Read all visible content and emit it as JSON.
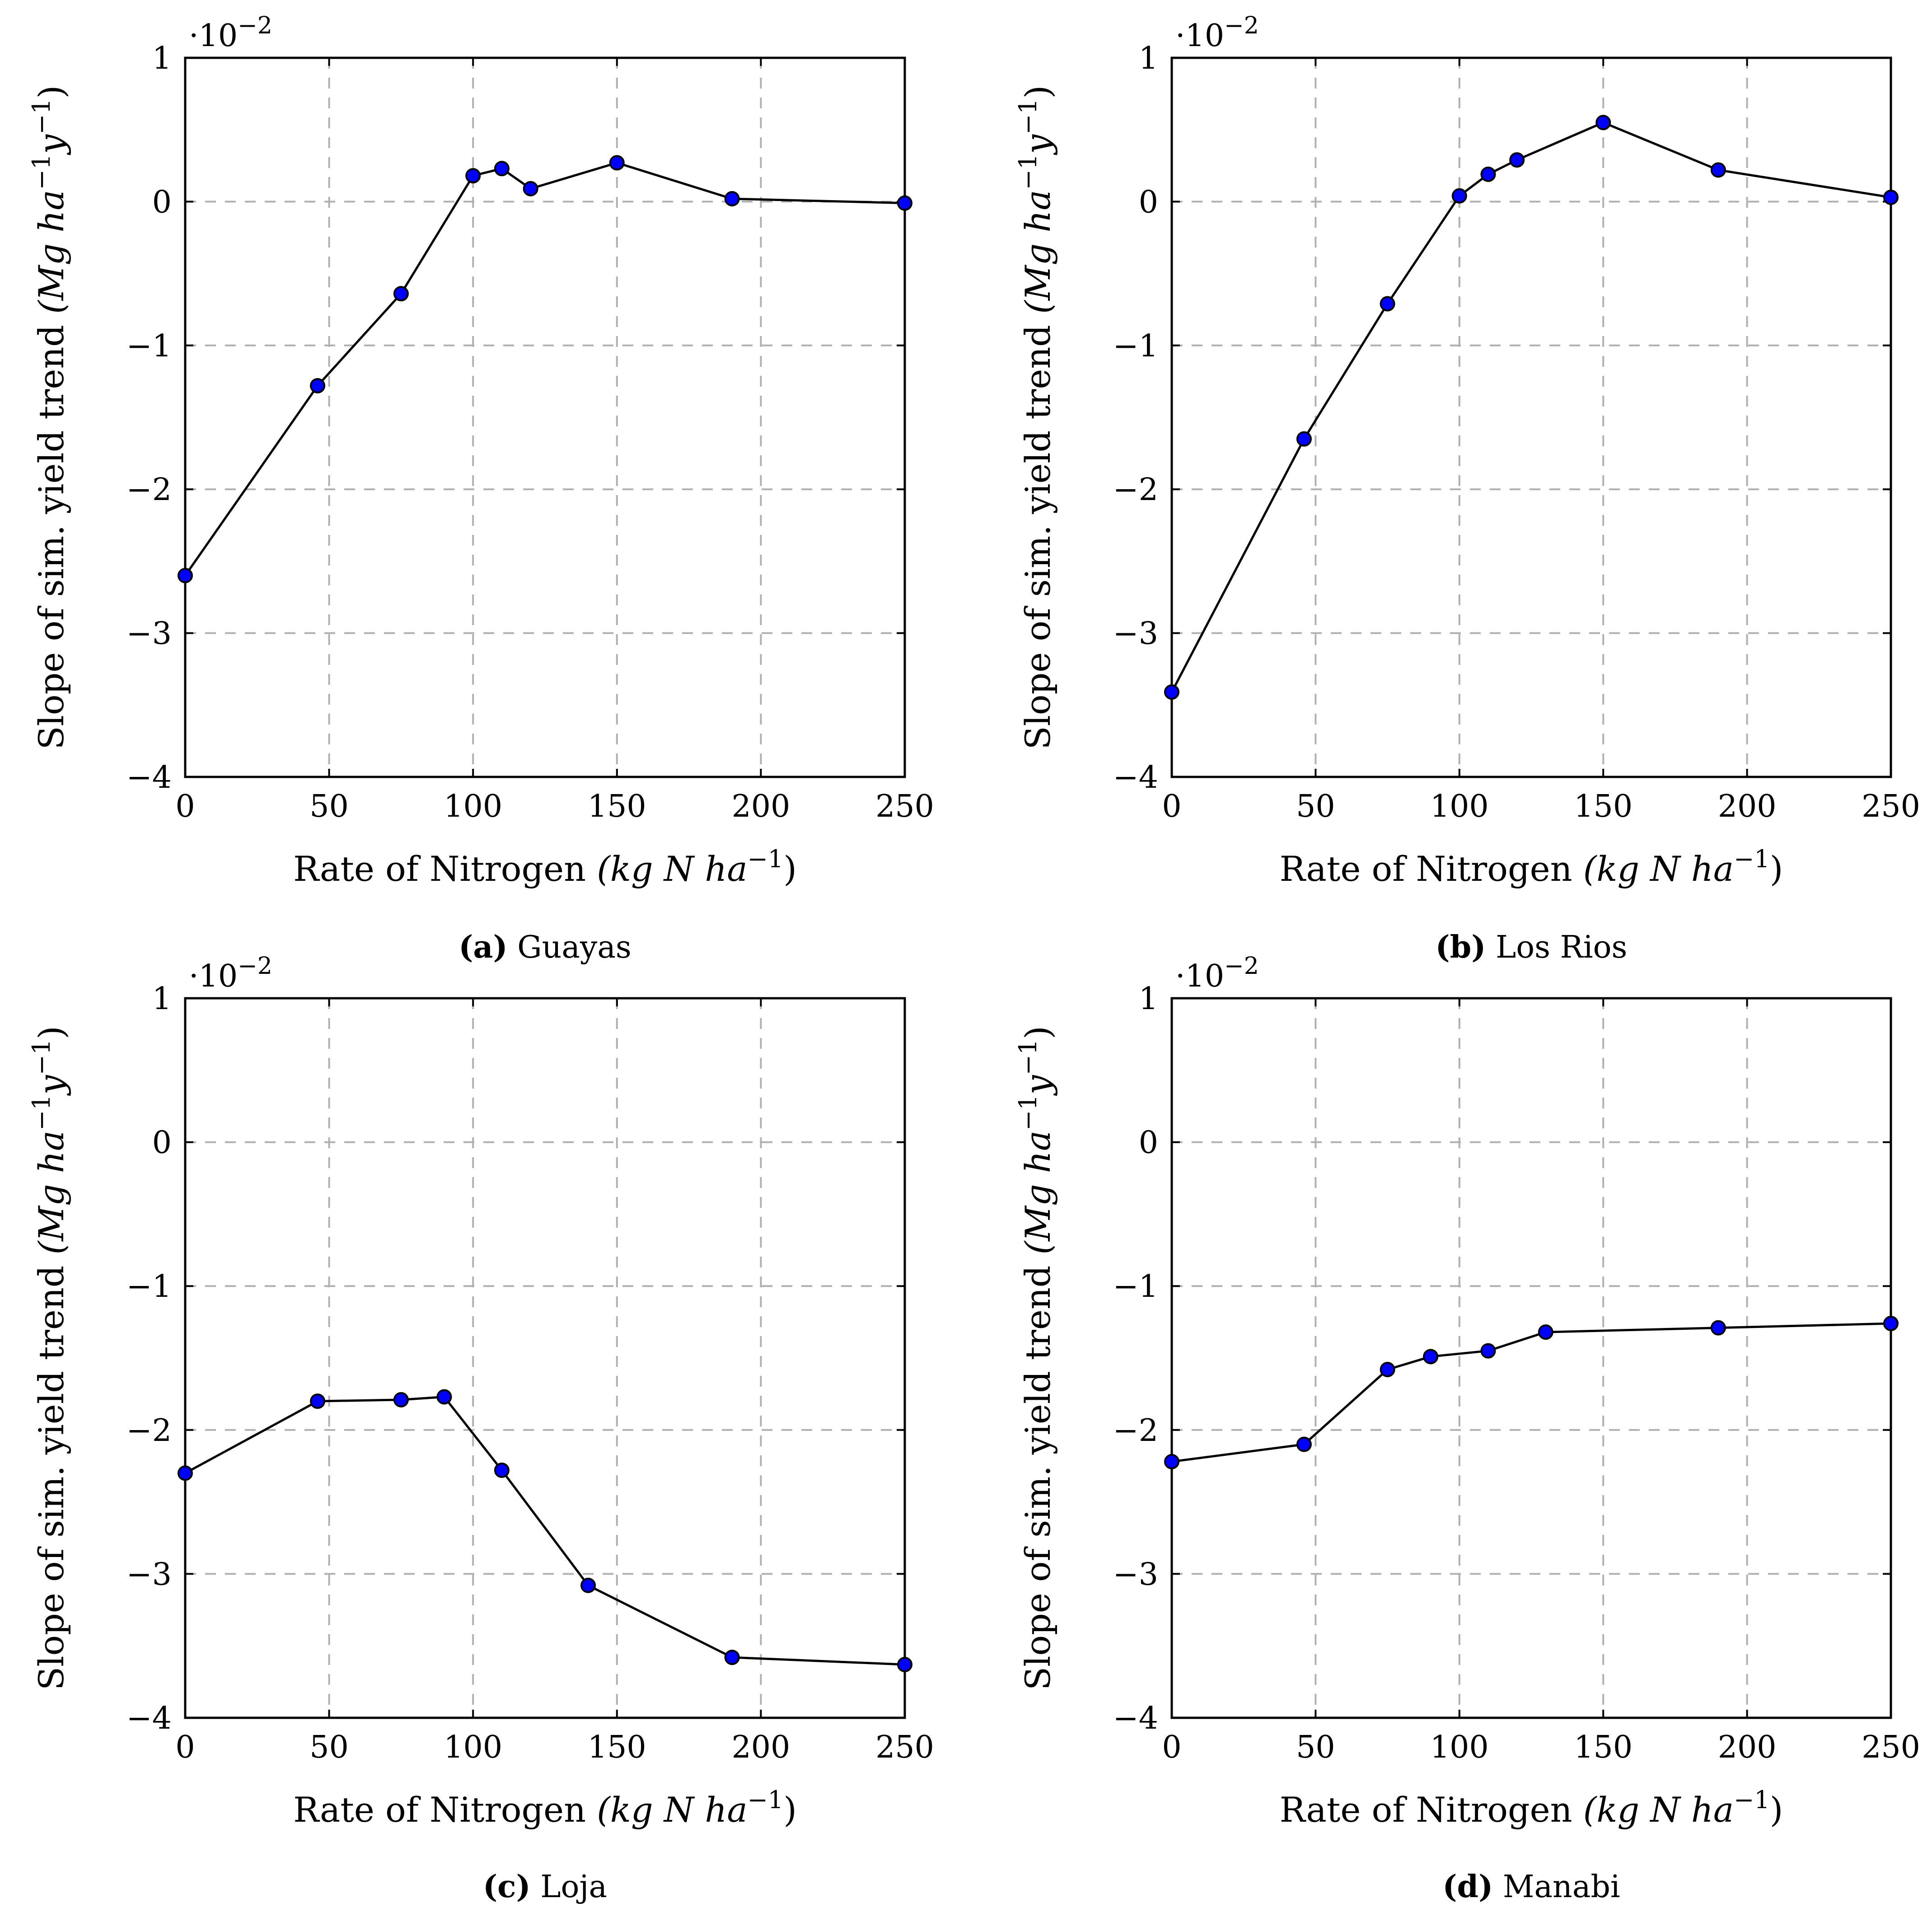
{
  "figure": {
    "line_color": "#000000",
    "marker_fill": "#0000ff",
    "grid_color": "#b0b0b0"
  },
  "chart_data": [
    {
      "id": "a",
      "type": "line",
      "caption_letter": "(a)",
      "caption_name": "Guayas",
      "x": [
        0,
        46,
        75,
        100,
        110,
        120,
        150,
        190,
        250
      ],
      "y": [
        -2.6,
        -1.28,
        -0.64,
        0.18,
        0.23,
        0.09,
        0.27,
        0.02,
        -0.01
      ],
      "xlim": [
        0,
        250
      ],
      "ylim": [
        -4,
        1
      ],
      "xticks": [
        0,
        50,
        100,
        150,
        200,
        250
      ],
      "yticks": [
        -4,
        -3,
        -2,
        -1,
        0,
        1
      ],
      "ytick_labels": [
        "−4",
        "−3",
        "−2",
        "−1",
        "0",
        "1"
      ],
      "y_scale_label": "·10",
      "y_scale_exp": "−2",
      "xlabel_text": "Rate of Nitrogen ",
      "xlabel_math": "(kg N ha",
      "xlabel_exp": "−1",
      "xlabel_close": ")",
      "ylabel_text": "Slope of sim. yield trend ",
      "ylabel_math1": "(Mg ha",
      "ylabel_exp1": "−1",
      "ylabel_math2": "y",
      "ylabel_exp2": "−1",
      "ylabel_close": ")",
      "grid": true
    },
    {
      "id": "b",
      "type": "line",
      "caption_letter": "(b)",
      "caption_name": "Los Rios",
      "x": [
        0,
        46,
        75,
        100,
        110,
        120,
        150,
        190,
        250
      ],
      "y": [
        -3.41,
        -1.65,
        -0.71,
        0.04,
        0.19,
        0.29,
        0.55,
        0.22,
        0.03
      ],
      "xlim": [
        0,
        250
      ],
      "ylim": [
        -4,
        1
      ],
      "xticks": [
        0,
        50,
        100,
        150,
        200,
        250
      ],
      "yticks": [
        -4,
        -3,
        -2,
        -1,
        0,
        1
      ],
      "ytick_labels": [
        "−4",
        "−3",
        "−2",
        "−1",
        "0",
        "1"
      ],
      "y_scale_label": "·10",
      "y_scale_exp": "−2",
      "xlabel_text": "Rate of Nitrogen ",
      "xlabel_math": "(kg N ha",
      "xlabel_exp": "−1",
      "xlabel_close": ")",
      "ylabel_text": "Slope of sim. yield trend ",
      "ylabel_math1": "(Mg ha",
      "ylabel_exp1": "−1",
      "ylabel_math2": "y",
      "ylabel_exp2": "−1",
      "ylabel_close": ")",
      "grid": true
    },
    {
      "id": "c",
      "type": "line",
      "caption_letter": "(c)",
      "caption_name": "Loja",
      "x": [
        0,
        46,
        75,
        90,
        110,
        140,
        190,
        250
      ],
      "y": [
        -2.3,
        -1.8,
        -1.79,
        -1.77,
        -2.28,
        -3.08,
        -3.58,
        -3.63
      ],
      "xlim": [
        0,
        250
      ],
      "ylim": [
        -4,
        1
      ],
      "xticks": [
        0,
        50,
        100,
        150,
        200,
        250
      ],
      "yticks": [
        -4,
        -3,
        -2,
        -1,
        0,
        1
      ],
      "ytick_labels": [
        "−4",
        "−3",
        "−2",
        "−1",
        "0",
        "1"
      ],
      "y_scale_label": "·10",
      "y_scale_exp": "−2",
      "xlabel_text": "Rate of Nitrogen ",
      "xlabel_math": "(kg N ha",
      "xlabel_exp": "−1",
      "xlabel_close": ")",
      "ylabel_text": "Slope of sim. yield trend ",
      "ylabel_math1": "(Mg ha",
      "ylabel_exp1": "−1",
      "ylabel_math2": "y",
      "ylabel_exp2": "−1",
      "ylabel_close": ")",
      "grid": true
    },
    {
      "id": "d",
      "type": "line",
      "caption_letter": "(d)",
      "caption_name": "Manabi",
      "x": [
        0,
        46,
        75,
        90,
        110,
        130,
        190,
        250
      ],
      "y": [
        -2.22,
        -2.1,
        -1.58,
        -1.49,
        -1.45,
        -1.32,
        -1.29,
        -1.26
      ],
      "xlim": [
        0,
        250
      ],
      "ylim": [
        -4,
        1
      ],
      "xticks": [
        0,
        50,
        100,
        150,
        200,
        250
      ],
      "yticks": [
        -4,
        -3,
        -2,
        -1,
        0,
        1
      ],
      "ytick_labels": [
        "−4",
        "−3",
        "−2",
        "−1",
        "0",
        "1"
      ],
      "y_scale_label": "·10",
      "y_scale_exp": "−2",
      "xlabel_text": "Rate of Nitrogen ",
      "xlabel_math": "(kg N ha",
      "xlabel_exp": "−1",
      "xlabel_close": ")",
      "ylabel_text": "Slope of sim. yield trend ",
      "ylabel_math1": "(Mg ha",
      "ylabel_exp1": "−1",
      "ylabel_math2": "y",
      "ylabel_exp2": "−1",
      "ylabel_close": ")",
      "grid": true
    }
  ]
}
